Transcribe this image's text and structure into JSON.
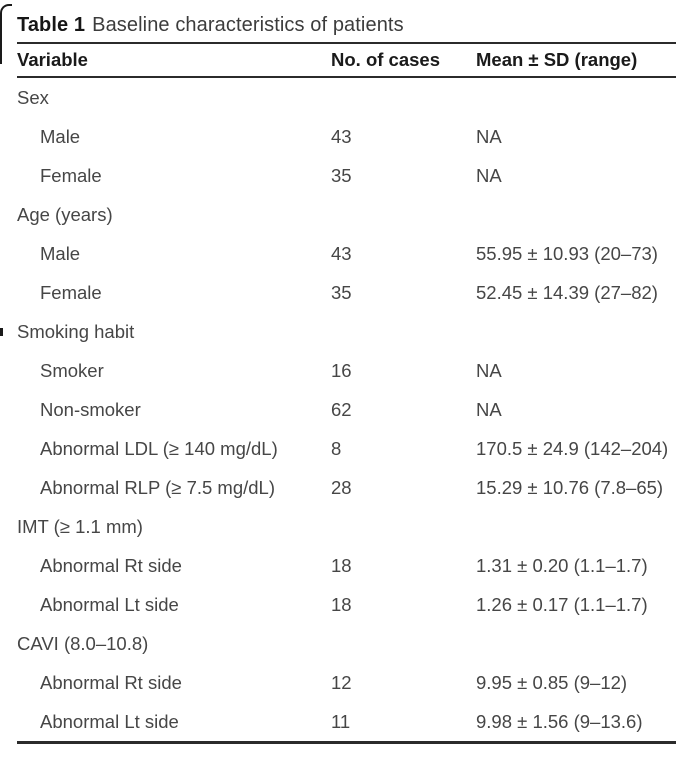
{
  "colors": {
    "rule": "#2b2b2b",
    "body_text": "#464646",
    "heading_text": "#1a1a1a"
  },
  "table": {
    "title_label": "Table 1",
    "title_text": "Baseline characteristics of patients",
    "columns": [
      "Variable",
      "No. of cases",
      "Mean ± SD (range)"
    ],
    "rows": [
      {
        "type": "section",
        "variable": "Sex",
        "cases": "",
        "mean": ""
      },
      {
        "type": "item",
        "variable": "Male",
        "cases": "43",
        "mean": "NA"
      },
      {
        "type": "item",
        "variable": "Female",
        "cases": "35",
        "mean": "NA"
      },
      {
        "type": "section",
        "variable": "Age (years)",
        "cases": "",
        "mean": ""
      },
      {
        "type": "item",
        "variable": "Male",
        "cases": "43",
        "mean": "55.95 ± 10.93 (20–73)"
      },
      {
        "type": "item",
        "variable": "Female",
        "cases": "35",
        "mean": "52.45 ± 14.39 (27–82)"
      },
      {
        "type": "section",
        "variable": "Smoking habit",
        "cases": "",
        "mean": ""
      },
      {
        "type": "item",
        "variable": "Smoker",
        "cases": "16",
        "mean": "NA"
      },
      {
        "type": "item",
        "variable": "Non-smoker",
        "cases": "62",
        "mean": "NA"
      },
      {
        "type": "item",
        "variable": "Abnormal LDL (≥ 140 mg/dL)",
        "cases": "8",
        "mean": "170.5 ± 24.9 (142–204)"
      },
      {
        "type": "item",
        "variable": "Abnormal RLP (≥ 7.5 mg/dL)",
        "cases": "28",
        "mean": "15.29 ± 10.76 (7.8–65)"
      },
      {
        "type": "section",
        "variable": "IMT (≥ 1.1 mm)",
        "cases": "",
        "mean": ""
      },
      {
        "type": "item",
        "variable": "Abnormal Rt side",
        "cases": "18",
        "mean": "1.31 ± 0.20 (1.1–1.7)"
      },
      {
        "type": "item",
        "variable": "Abnormal Lt side",
        "cases": "18",
        "mean": "1.26 ± 0.17 (1.1–1.7)"
      },
      {
        "type": "section",
        "variable": "CAVI (8.0–10.8)",
        "cases": "",
        "mean": ""
      },
      {
        "type": "item",
        "variable": "Abnormal Rt side",
        "cases": "12",
        "mean": "9.95 ± 0.85 (9–12)"
      },
      {
        "type": "item",
        "variable": "Abnormal Lt side",
        "cases": "11",
        "mean": "9.98 ± 1.56 (9–13.6)"
      }
    ]
  }
}
